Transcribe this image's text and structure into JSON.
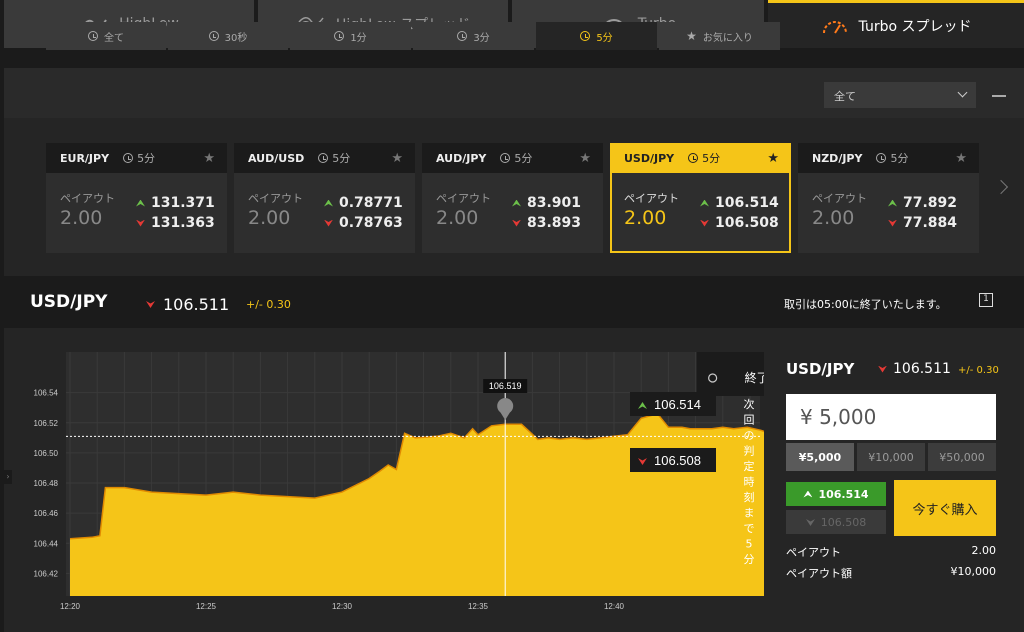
{
  "top_tabs": [
    {
      "label": "HighLow",
      "icon": "highlow-icon"
    },
    {
      "label": "HighLow スプレッド",
      "icon": "highlow-spread-icon"
    },
    {
      "label": "Turbo",
      "icon": "turbo-gauge-icon"
    },
    {
      "label": "Turbo スプレッド",
      "icon": "turbo-spread-gauge-icon",
      "active": true
    }
  ],
  "sub_tabs": [
    {
      "label": "全て",
      "icon": "clock-icon"
    },
    {
      "label": "30秒",
      "icon": "clock-icon"
    },
    {
      "label": "1分",
      "icon": "clock-icon"
    },
    {
      "label": "3分",
      "icon": "clock-icon"
    },
    {
      "label": "5分",
      "icon": "clock-icon",
      "active": true
    },
    {
      "label": "お気に入り",
      "icon": "star-icon"
    }
  ],
  "filter": {
    "selected": "全て"
  },
  "cards": [
    {
      "pair": "EUR/JPY",
      "period": "5分",
      "payout_label": "ペイアウト",
      "payout": "2.00",
      "high": "131.371",
      "low": "131.363"
    },
    {
      "pair": "AUD/USD",
      "period": "5分",
      "payout_label": "ペイアウト",
      "payout": "2.00",
      "high": "0.78771",
      "low": "0.78763"
    },
    {
      "pair": "AUD/JPY",
      "period": "5分",
      "payout_label": "ペイアウト",
      "payout": "2.00",
      "high": "83.901",
      "low": "83.893"
    },
    {
      "pair": "USD/JPY",
      "period": "5分",
      "payout_label": "ペイアウト",
      "payout": "2.00",
      "high": "106.514",
      "low": "106.508",
      "active": true
    },
    {
      "pair": "NZD/JPY",
      "period": "5分",
      "payout_label": "ペイアウト",
      "payout": "2.00",
      "high": "77.892",
      "low": "77.884"
    }
  ],
  "instrument": {
    "name": "USD/JPY",
    "rate": "106.511",
    "spread": "+/- 0.30",
    "message": "取引は05:00に終了いたします。",
    "info_icon_text": "1"
  },
  "chart_data": {
    "type": "area",
    "x_ticks": [
      "12:20",
      "12:25",
      "12:30",
      "12:35",
      "12:40"
    ],
    "y_ticks": [
      "106.42",
      "106.44",
      "106.46",
      "106.48",
      "106.50",
      "106.52",
      "106.54"
    ],
    "ylim": [
      106.405,
      106.567
    ],
    "x_minutes": [
      0,
      0.8,
      1.1,
      1.3,
      2,
      3,
      4,
      5,
      6,
      7,
      8,
      9,
      10,
      11,
      11.4,
      11.7,
      12,
      12.3,
      12.7,
      13.5,
      14,
      14.5,
      14.8,
      15,
      15.5,
      16,
      16.6,
      16.9,
      17.2,
      17.6,
      18,
      18.5,
      19,
      19.5,
      20,
      20.5,
      21,
      21.6,
      22,
      22.5,
      22.8,
      23.1,
      23.6,
      24,
      24.4,
      24.9,
      25.4,
      25.7,
      26,
      26.2
    ],
    "values": [
      106.443,
      106.444,
      106.445,
      106.477,
      106.477,
      106.474,
      106.473,
      106.472,
      106.474,
      106.472,
      106.471,
      106.47,
      106.474,
      106.483,
      106.488,
      106.492,
      106.489,
      106.513,
      106.51,
      106.511,
      106.513,
      106.51,
      106.516,
      106.512,
      106.518,
      106.519,
      106.519,
      106.514,
      106.509,
      106.51,
      106.509,
      106.51,
      106.509,
      106.51,
      106.511,
      106.512,
      106.523,
      106.526,
      106.517,
      106.517,
      106.516,
      106.516,
      106.516,
      106.517,
      106.516,
      106.517,
      106.515,
      106.513,
      106.512,
      106.511
    ],
    "now_x": 26.2,
    "marker": {
      "label": "106.519",
      "x": 16.0
    },
    "strike": 106.511,
    "end_label": "終了",
    "countdown_text": "次回の判定時刻まで5分",
    "high_label": "106.514",
    "low_label": "106.508",
    "colors": {
      "fill": "#f5c518",
      "line": "#e08a00",
      "bg": "#2e2e2e"
    }
  },
  "trade_panel": {
    "name": "USD/JPY",
    "rate": "106.511",
    "spread": "+/- 0.30",
    "amount": "¥ 5,000",
    "amount_buttons": [
      "¥5,000",
      "¥10,000",
      "¥50,000"
    ],
    "high": "106.514",
    "low": "106.508",
    "buy_label": "今すぐ購入",
    "payout_label": "ペイアウト",
    "payout_value": "2.00",
    "payout_amount_label": "ペイアウト額",
    "payout_amount_value": "¥10,000"
  }
}
